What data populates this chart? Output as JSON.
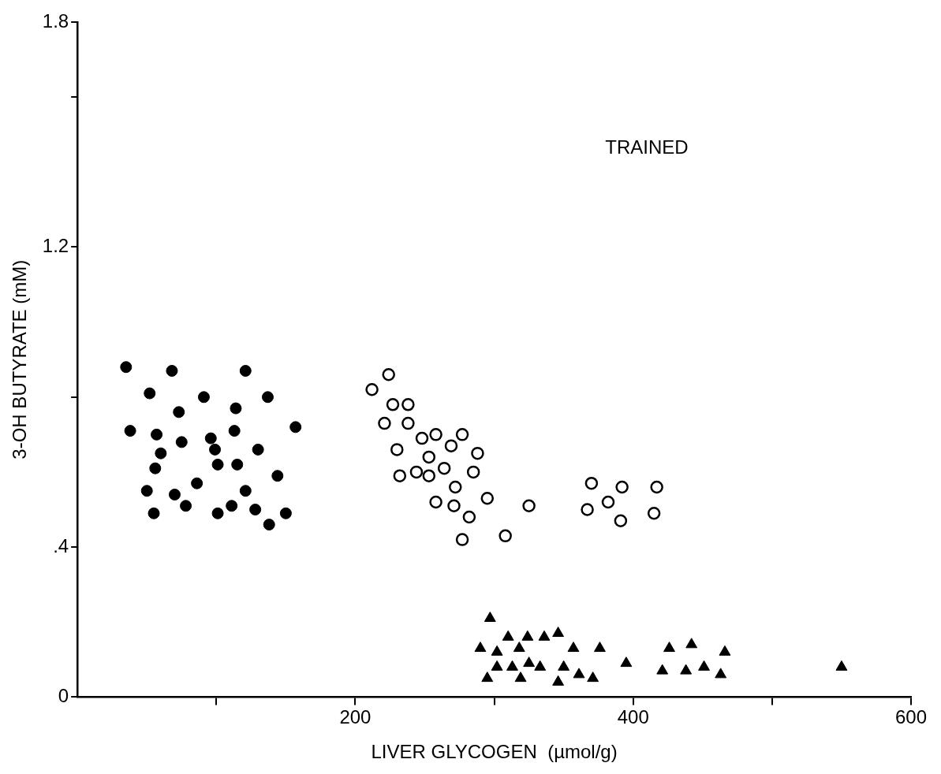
{
  "chart_data": {
    "type": "scatter",
    "xlabel": "LIVER GLYCOGEN  (µmol/g)",
    "ylabel": "3-OH BUTYRATE (mM)",
    "annotations": [
      "TRAINED"
    ],
    "xlim": [
      0,
      600
    ],
    "xticks": [
      {
        "value": 100,
        "label": null
      },
      200,
      {
        "value": 300,
        "label": null
      },
      400,
      {
        "value": 500,
        "label": null
      },
      600
    ],
    "ylim": [
      0,
      1.8
    ],
    "yticks": [
      0,
      {
        "value": 0.4,
        "label": ".4"
      },
      {
        "value": 0.8,
        "label": null
      },
      1.2,
      {
        "value": 1.6,
        "label": null
      },
      1.8
    ],
    "grid": false,
    "legend": false,
    "series": [
      {
        "color": "#000000",
        "marker": "circle",
        "x": [
          35,
          68,
          121,
          52,
          91,
          137,
          73,
          114,
          157,
          38,
          57,
          75,
          96,
          113,
          99,
          130,
          60,
          56,
          101,
          115,
          86,
          144,
          50,
          70,
          121,
          78,
          101,
          111,
          128,
          150,
          55,
          138
        ],
        "values": [
          0.88,
          0.87,
          0.87,
          0.81,
          0.8,
          0.8,
          0.76,
          0.77,
          0.72,
          0.71,
          0.7,
          0.68,
          0.69,
          0.71,
          0.66,
          0.66,
          0.65,
          0.61,
          0.62,
          0.62,
          0.57,
          0.59,
          0.55,
          0.54,
          0.55,
          0.51,
          0.49,
          0.51,
          0.5,
          0.49,
          0.49,
          0.46
        ]
      },
      {
        "color": "#000000",
        "marker": "circle",
        "x": [
          224,
          212,
          227,
          238,
          221,
          238,
          248,
          258,
          277,
          269,
          230,
          253,
          288,
          232,
          244,
          253,
          264,
          285,
          272,
          295,
          258,
          271,
          282,
          325,
          308,
          277,
          370,
          392,
          417,
          382,
          367,
          391,
          415
        ],
        "values": [
          0.86,
          0.82,
          0.78,
          0.78,
          0.73,
          0.73,
          0.69,
          0.7,
          0.7,
          0.67,
          0.66,
          0.64,
          0.65,
          0.59,
          0.6,
          0.59,
          0.61,
          0.6,
          0.56,
          0.53,
          0.52,
          0.51,
          0.48,
          0.51,
          0.43,
          0.42,
          0.57,
          0.56,
          0.56,
          0.52,
          0.5,
          0.47,
          0.49
        ]
      },
      {
        "color": "#000000",
        "marker": "triangle",
        "x": [
          297,
          310,
          324,
          336,
          346,
          290,
          302,
          318,
          357,
          376,
          426,
          442,
          466,
          302,
          313,
          325,
          333,
          350,
          395,
          421,
          438,
          451,
          463,
          550,
          295,
          319,
          346,
          361,
          371
        ],
        "values": [
          0.21,
          0.16,
          0.16,
          0.16,
          0.17,
          0.13,
          0.12,
          0.13,
          0.13,
          0.13,
          0.13,
          0.14,
          0.12,
          0.08,
          0.08,
          0.09,
          0.08,
          0.08,
          0.09,
          0.07,
          0.07,
          0.08,
          0.06,
          0.08,
          0.05,
          0.05,
          0.04,
          0.06,
          0.05
        ]
      }
    ]
  }
}
